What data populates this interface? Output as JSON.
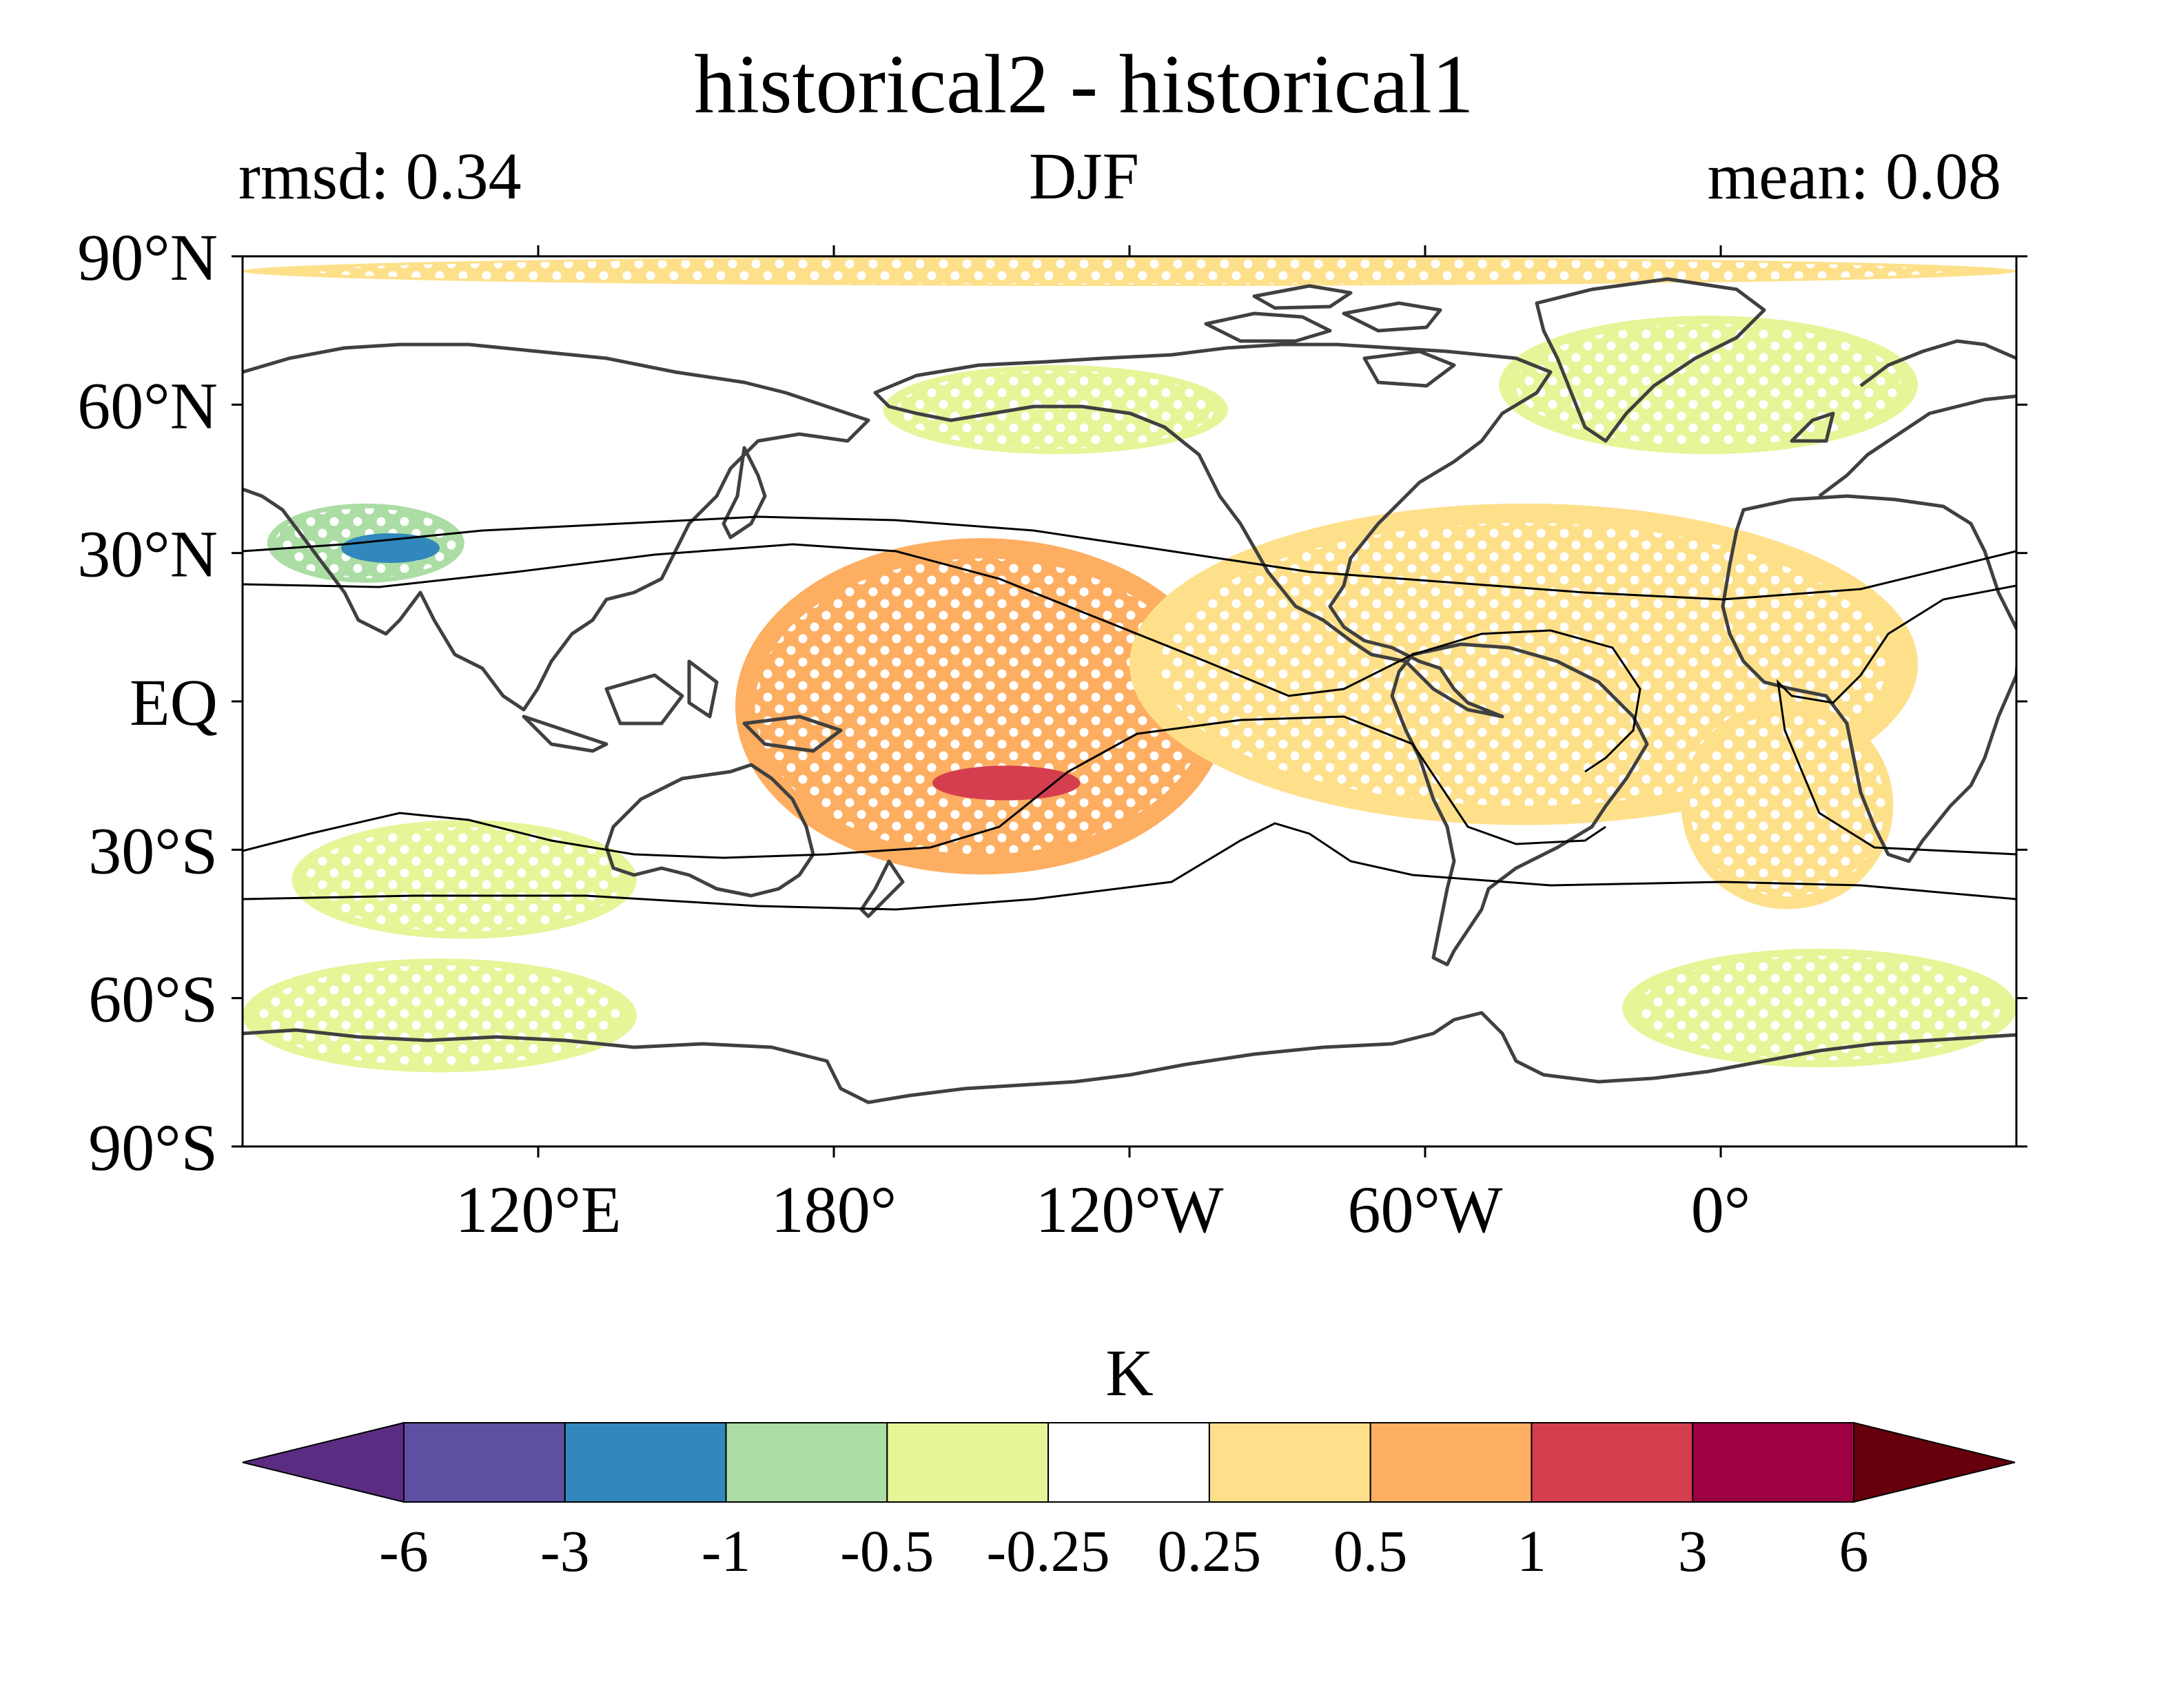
{
  "chart_data": {
    "type": "heatmap",
    "title": "historical2 - historical1",
    "left_annotation": "rmsd: 0.34",
    "center_annotation": "DJF",
    "right_annotation": "mean: 0.08",
    "projection": "PlateCarree",
    "central_longitude": 0,
    "extent_lon": [
      -300,
      60
    ],
    "extent_lat": [
      -90,
      90
    ],
    "x_ticks": [
      {
        "lon": -240,
        "label": "120°E"
      },
      {
        "lon": -180,
        "label": "180°"
      },
      {
        "lon": -120,
        "label": "120°W"
      },
      {
        "lon": -60,
        "label": "60°W"
      },
      {
        "lon": 0,
        "label": "0°"
      }
    ],
    "y_ticks": [
      {
        "lat": 90,
        "label": "90°N"
      },
      {
        "lat": 60,
        "label": "60°N"
      },
      {
        "lat": 30,
        "label": "30°N"
      },
      {
        "lat": 0,
        "label": "EQ"
      },
      {
        "lat": -30,
        "label": "30°S"
      },
      {
        "lat": -60,
        "label": "60°S"
      },
      {
        "lat": -90,
        "label": "90°S"
      }
    ],
    "colorbar": {
      "label": "K",
      "orientation": "horizontal",
      "extend": "both",
      "levels": [
        "-6",
        "-3",
        "-1",
        "-0.5",
        "-0.25",
        "0.25",
        "0.5",
        "1",
        "3",
        "6"
      ],
      "colors": [
        "#5e4fa2",
        "#3288bd",
        "#abdda4",
        "#e6f598",
        "#ffffff",
        "#fee08b",
        "#fdae61",
        "#d53e4f",
        "#9e0142"
      ],
      "under_color": "#5b2d82",
      "over_color": "#67000d"
    },
    "significance_stippling": true,
    "contour_line_color": "#000000",
    "coastline_color": "#404040",
    "anomaly_regions": [
      {
        "name": "north-pole-band",
        "level": 0.3,
        "lon_range": [
          -300,
          60
        ],
        "lat_range": [
          84,
          90
        ]
      },
      {
        "name": "central-pacific-warm",
        "level": 0.8,
        "lon_range": [
          -200,
          -100
        ],
        "lat_range": [
          -35,
          33
        ]
      },
      {
        "name": "central-pacific-warm-core",
        "level": 1.7,
        "lon_range": [
          -160,
          -130
        ],
        "lat_range": [
          -20,
          -13
        ]
      },
      {
        "name": "atlantic-warm",
        "level": 0.35,
        "lon_range": [
          -120,
          40
        ],
        "lat_range": [
          -25,
          40
        ]
      },
      {
        "name": "south-atlantic-africa-warm",
        "level": 0.35,
        "lon_range": [
          -8,
          35
        ],
        "lat_range": [
          -42,
          0
        ]
      },
      {
        "name": "tibet-cold",
        "level": -0.8,
        "lon_range": [
          -295,
          -255
        ],
        "lat_range": [
          24,
          40
        ]
      },
      {
        "name": "tibet-cold-core",
        "level": -1.5,
        "lon_range": [
          -280,
          -260
        ],
        "lat_range": [
          28,
          34
        ]
      },
      {
        "name": "australia-cold",
        "level": -0.4,
        "lon_range": [
          -290,
          -220
        ],
        "lat_range": [
          -48,
          -24
        ]
      },
      {
        "name": "southern-ocean-cold-west",
        "level": -0.5,
        "lon_range": [
          -300,
          -220
        ],
        "lat_range": [
          -75,
          -52
        ]
      },
      {
        "name": "southern-ocean-cold-east",
        "level": -0.5,
        "lon_range": [
          -20,
          60
        ],
        "lat_range": [
          -74,
          -50
        ]
      },
      {
        "name": "north-pacific-cool",
        "level": -0.3,
        "lon_range": [
          -170,
          -100
        ],
        "lat_range": [
          50,
          68
        ]
      },
      {
        "name": "greenland-cool",
        "level": -0.4,
        "lon_range": [
          -45,
          40
        ],
        "lat_range": [
          50,
          78
        ]
      }
    ]
  }
}
